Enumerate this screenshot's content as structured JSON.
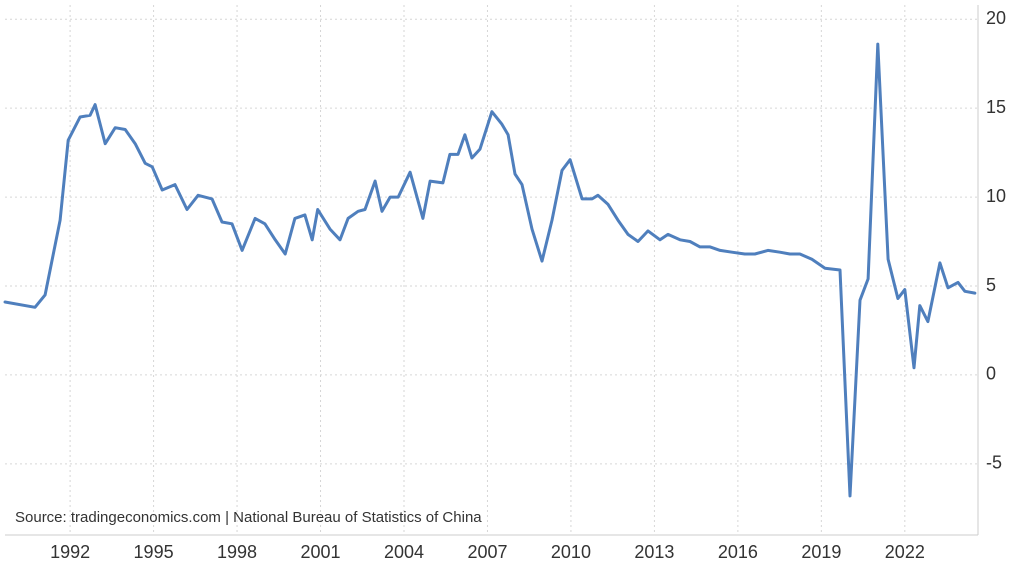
{
  "chart_data": {
    "type": "line",
    "source": "Source: tradingeconomics.com | National Bureau of Statistics of China",
    "x": [
      1989.66,
      1990.74,
      1991.1,
      1991.64,
      1991.93,
      1992.36,
      1992.72,
      1992.9,
      1993.26,
      1993.62,
      1993.98,
      1994.34,
      1994.7,
      1994.95,
      1995.31,
      1995.77,
      1996.2,
      1996.6,
      1997.1,
      1997.46,
      1997.82,
      1998.18,
      1998.65,
      1999.0,
      1999.37,
      1999.73,
      2000.08,
      2000.44,
      2000.7,
      2000.9,
      2001.34,
      2001.7,
      2001.99,
      2002.35,
      2002.6,
      2002.96,
      2003.21,
      2003.5,
      2003.79,
      2004.22,
      2004.68,
      2004.94,
      2005.4,
      2005.65,
      2005.94,
      2006.19,
      2006.44,
      2006.73,
      2007.16,
      2007.52,
      2007.74,
      2007.99,
      2008.24,
      2008.6,
      2008.96,
      2009.32,
      2009.68,
      2009.97,
      2010.4,
      2010.76,
      2010.97,
      2011.33,
      2011.69,
      2012.05,
      2012.41,
      2012.77,
      2013.2,
      2013.49,
      2013.92,
      2014.28,
      2014.64,
      2015.0,
      2015.36,
      2015.79,
      2016.25,
      2016.61,
      2017.08,
      2017.51,
      2017.87,
      2018.23,
      2018.66,
      2019.13,
      2019.67,
      2020.03,
      2020.39,
      2020.68,
      2021.03,
      2021.4,
      2021.75,
      2022.0,
      2022.33,
      2022.54,
      2022.83,
      2023.26,
      2023.55,
      2023.91,
      2024.16,
      2024.52
    ],
    "series": [
      {
        "color": "#4f7fbd",
        "values": [
          4.1,
          3.8,
          4.5,
          8.7,
          13.2,
          14.5,
          14.6,
          15.2,
          13.0,
          13.9,
          13.8,
          13.0,
          11.9,
          11.7,
          10.4,
          10.7,
          9.3,
          10.1,
          9.9,
          8.6,
          8.5,
          7.0,
          8.8,
          8.5,
          7.6,
          6.8,
          8.8,
          9.0,
          7.6,
          9.3,
          8.2,
          7.6,
          8.8,
          9.2,
          9.3,
          10.9,
          9.2,
          10.0,
          10.0,
          11.4,
          8.8,
          10.9,
          10.8,
          12.4,
          12.4,
          13.5,
          12.2,
          12.7,
          14.8,
          14.1,
          13.5,
          11.3,
          10.7,
          8.2,
          6.4,
          8.7,
          11.5,
          12.1,
          9.9,
          9.9,
          10.1,
          9.6,
          8.7,
          7.9,
          7.5,
          8.1,
          7.6,
          7.9,
          7.6,
          7.5,
          7.2,
          7.2,
          7.0,
          6.9,
          6.8,
          6.8,
          7.0,
          6.9,
          6.8,
          6.8,
          6.5,
          6.0,
          5.9,
          -6.8,
          4.2,
          5.4,
          18.6,
          6.5,
          4.3,
          4.8,
          0.4,
          3.9,
          3.0,
          6.3,
          4.9,
          5.2,
          4.7,
          4.6
        ]
      }
    ],
    "xlim": [
      1989.66,
      2024.63
    ],
    "xticks": [
      1992,
      1995,
      1998,
      2001,
      2004,
      2007,
      2010,
      2013,
      2016,
      2019,
      2022
    ],
    "ylim": [
      -9,
      20.8
    ],
    "yticks": [
      -5,
      0,
      5,
      10,
      15,
      20
    ],
    "grid": true
  }
}
